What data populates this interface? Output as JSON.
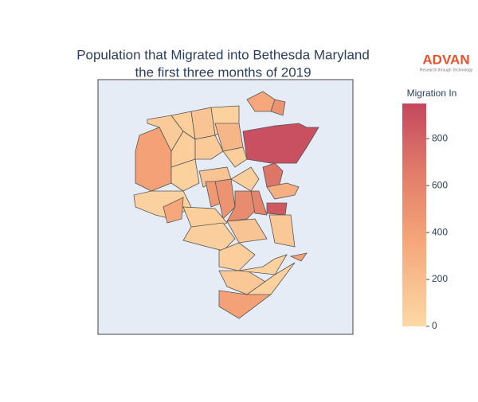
{
  "chart_data": {
    "type": "choropleth",
    "title": [
      "Population that Migrated into Bethesda Maryland",
      "the first three months of 2019"
    ],
    "colorbar_title": "Migration In",
    "values": [
      400,
      100,
      80,
      150,
      60,
      350,
      500,
      900,
      250,
      80,
      100,
      80,
      60,
      150,
      80,
      450,
      500,
      550,
      600,
      700,
      300,
      850,
      120,
      50,
      350,
      80,
      70,
      150,
      80,
      120,
      60,
      400,
      400,
      60
    ],
    "zlim": [
      0,
      950
    ],
    "zticks": [
      0,
      200,
      400,
      600,
      800
    ],
    "colorscale": [
      [
        0,
        "#fcd9a5"
      ],
      [
        0.4,
        "#f5a478"
      ],
      [
        0.7,
        "#e07b6a"
      ],
      [
        1,
        "#c4475e"
      ]
    ],
    "background": "#e5ecf6"
  },
  "logo": {
    "name": "ADVAN",
    "tagline": "Research through Technology"
  }
}
